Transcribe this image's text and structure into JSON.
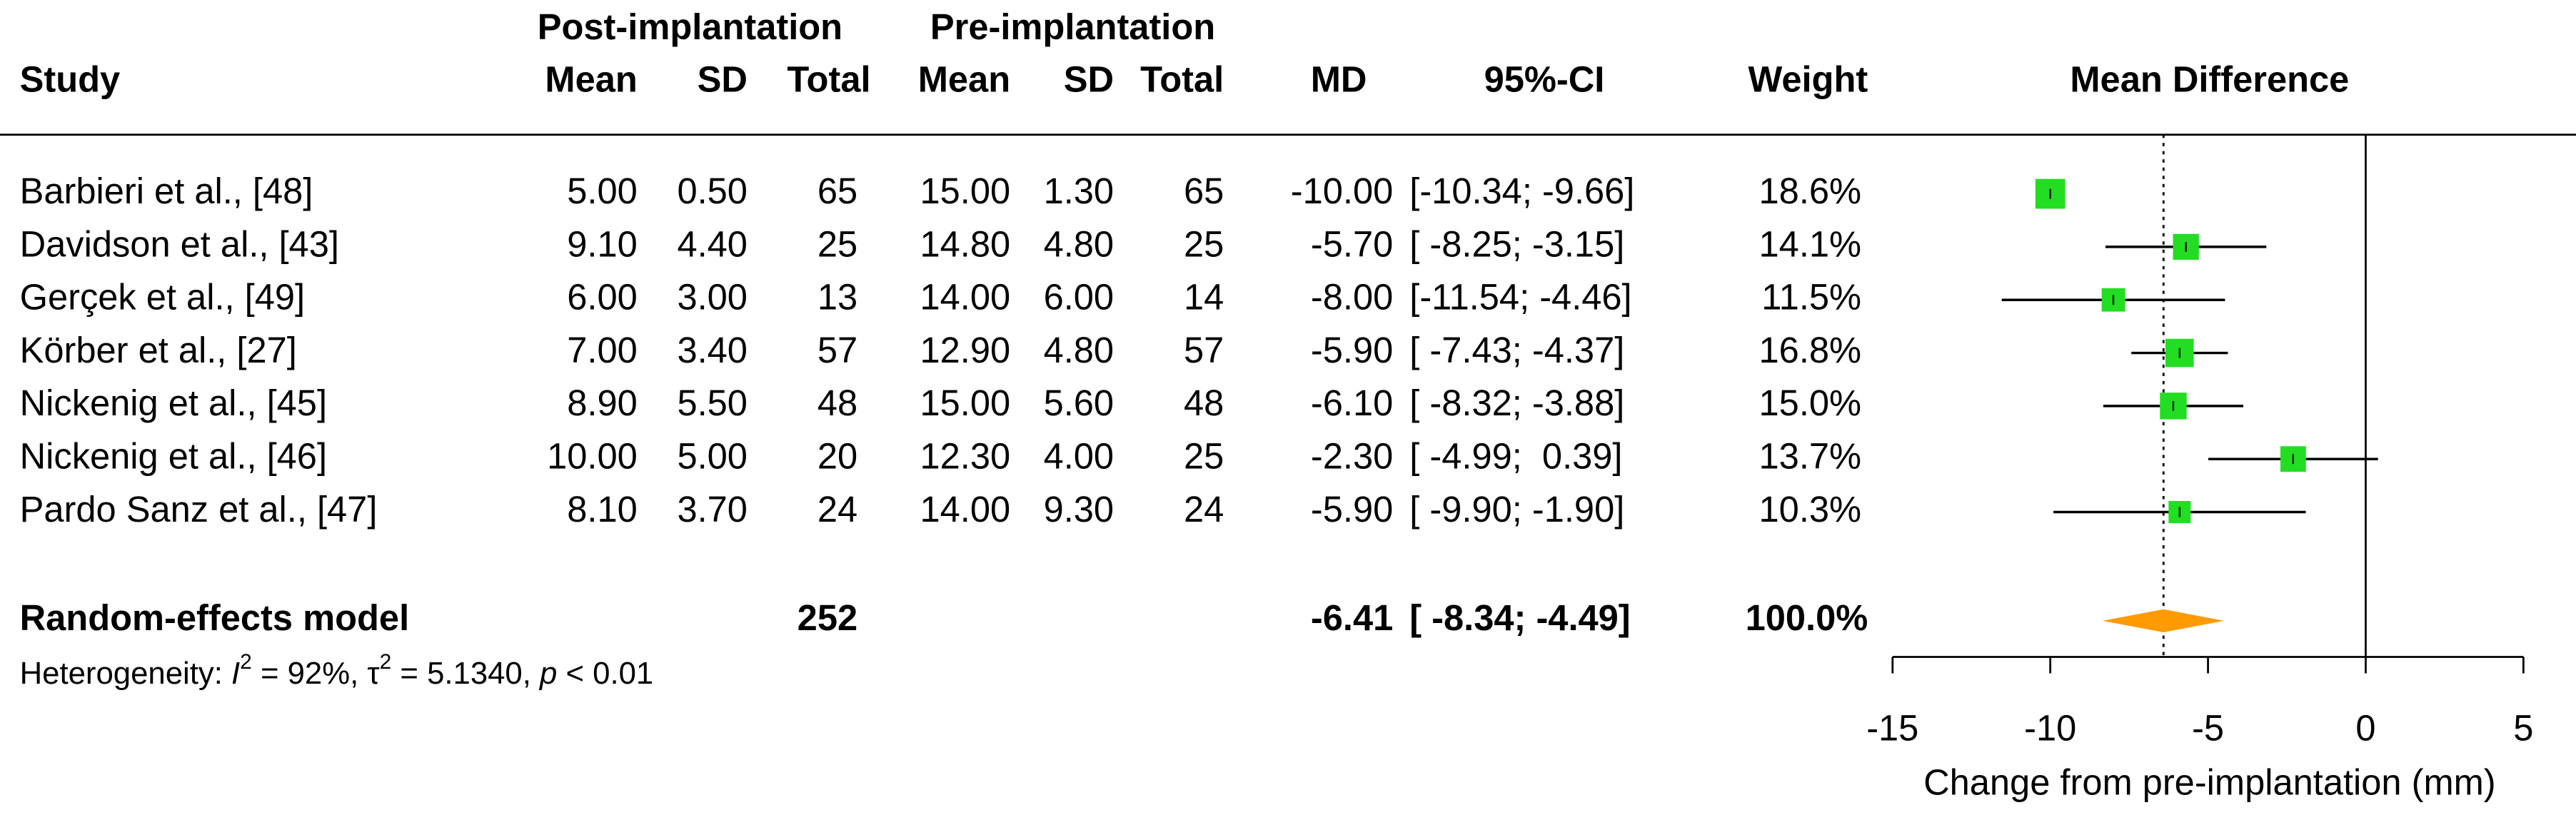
{
  "chart_data": {
    "type": "forest",
    "group_headers": [
      "Post-implantation",
      "Pre-implantation"
    ],
    "columns": [
      "Study",
      "Mean",
      "SD",
      "Total",
      "Mean",
      "SD",
      "Total",
      "MD",
      "95%-CI",
      "Weight",
      "Mean Difference"
    ],
    "categories": [
      "Barbieri et al., [48]",
      "Davidson et al., [43]",
      "Gerçek et al., [49]",
      "Körber et al., [27]",
      "Nickenig et al., [45]",
      "Nickenig et al., [46]",
      "Pardo Sanz et al., [47]"
    ],
    "table": [
      [
        "5.00",
        "0.50",
        "65",
        "15.00",
        "1.30",
        "65"
      ],
      [
        "9.10",
        "4.40",
        "25",
        "14.80",
        "4.80",
        "25"
      ],
      [
        "6.00",
        "3.00",
        "13",
        "14.00",
        "6.00",
        "14"
      ],
      [
        "7.00",
        "3.40",
        "57",
        "12.90",
        "4.80",
        "57"
      ],
      [
        "8.90",
        "5.50",
        "48",
        "15.00",
        "5.60",
        "48"
      ],
      [
        "10.00",
        "5.00",
        "20",
        "12.30",
        "4.00",
        "25"
      ],
      [
        "8.10",
        "3.70",
        "24",
        "14.00",
        "9.30",
        "24"
      ]
    ],
    "md": [
      -10,
      -5.7,
      -8,
      -5.9,
      -6.1,
      -2.3,
      -5.9
    ],
    "md_labels": [
      "-10.00",
      "-5.70",
      "-8.00",
      "-5.90",
      "-6.10",
      "-2.30",
      "-5.90"
    ],
    "ci_lower": [
      -10.34,
      -8.25,
      -11.54,
      -7.43,
      -8.32,
      -4.99,
      -9.9
    ],
    "ci_upper": [
      -9.66,
      -3.15,
      -4.46,
      -4.37,
      -3.88,
      0.39,
      -1.9
    ],
    "ci_labels": [
      "[-10.34; -9.66]",
      "[ -8.25; -3.15]",
      "[-11.54; -4.46]",
      "[ -7.43; -4.37]",
      "[ -8.32; -3.88]",
      "[ -4.99;  0.39]",
      "[ -9.90; -1.90]"
    ],
    "weight": [
      18.6,
      14.1,
      11.5,
      16.8,
      15.0,
      13.7,
      10.3
    ],
    "weight_labels": [
      "18.6%",
      "14.1%",
      "11.5%",
      "16.8%",
      "15.0%",
      "13.7%",
      "10.3%"
    ],
    "pooled": {
      "name": "Random-effects model",
      "total": 252,
      "md": -6.41,
      "ci_lower": -8.34,
      "ci_upper": -4.49,
      "ci_label": "[ -8.34; -4.49]",
      "weight": 100,
      "weight_label": "100.0%"
    },
    "heterogeneity": [
      "Heterogeneity: ",
      "I",
      "2",
      " = 92%, ",
      "τ",
      "2",
      " = 5.1340, ",
      "p",
      " < 0.01"
    ],
    "xlabel": "Change from pre-implantation (mm)",
    "xlim": [
      -15,
      5
    ],
    "xticks": [
      -15,
      -10,
      -5,
      0,
      5
    ],
    "square_color": "#22dd22",
    "diamond_color": "#ff9a00"
  }
}
